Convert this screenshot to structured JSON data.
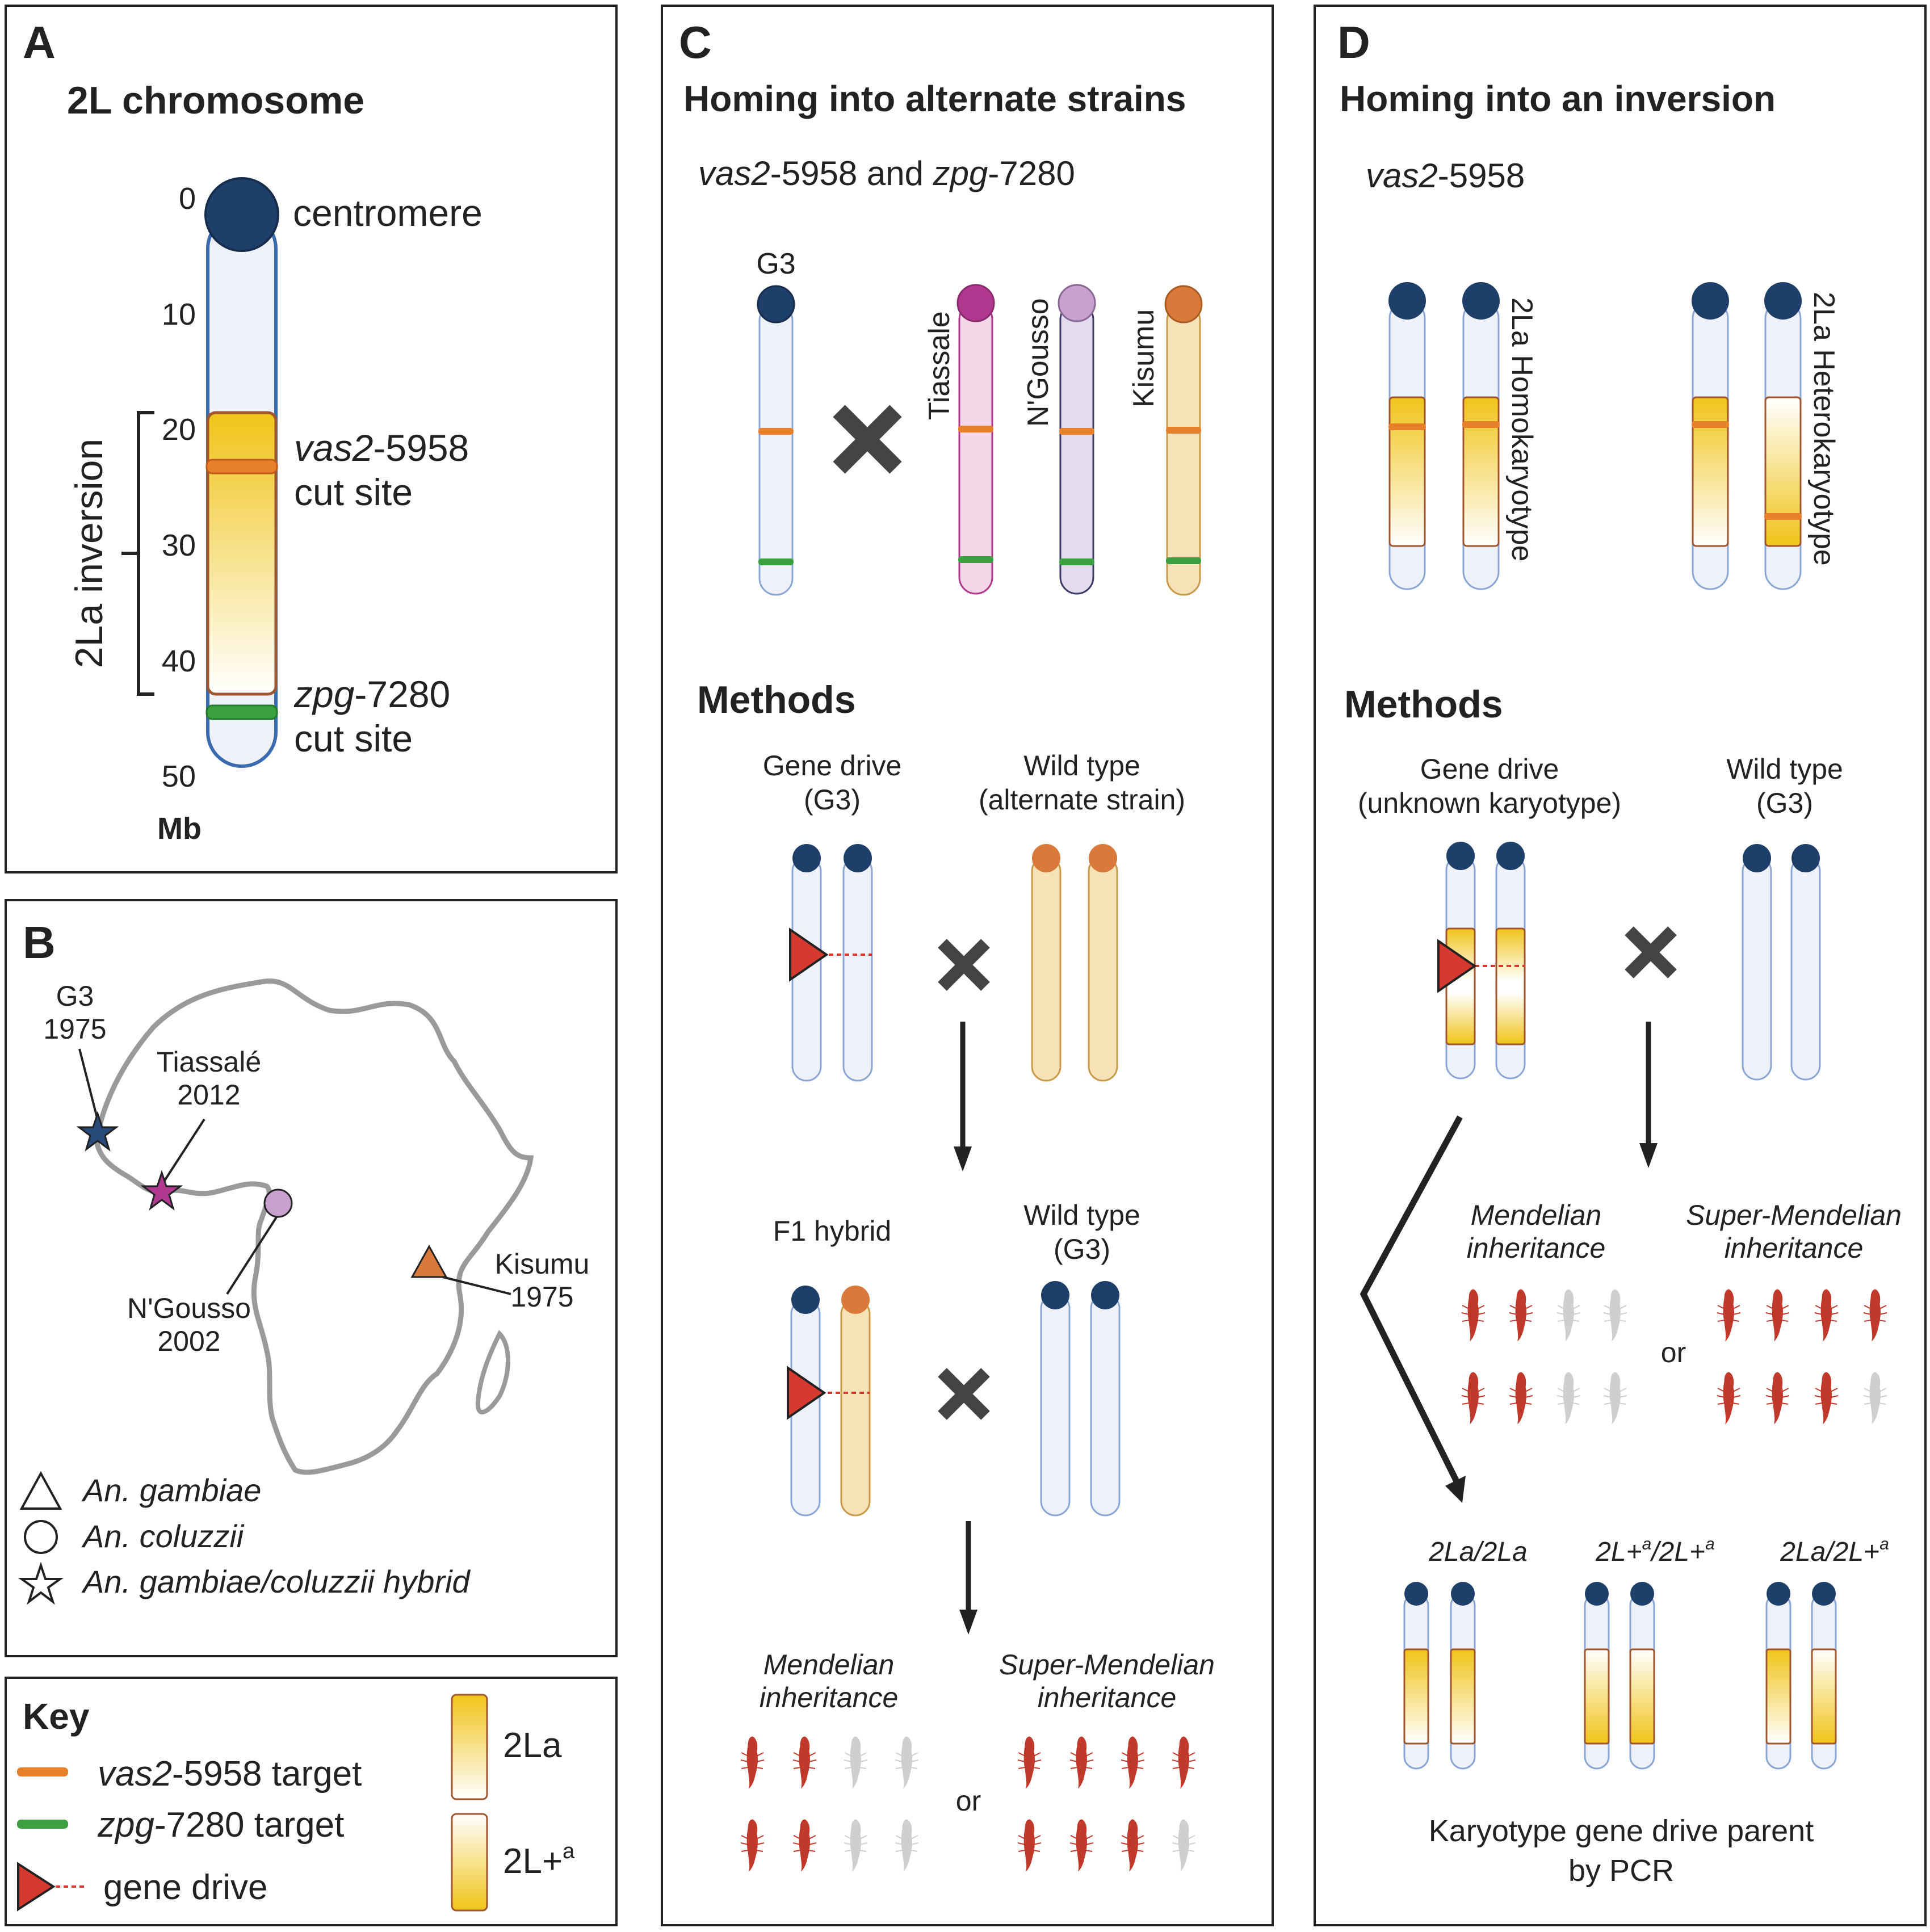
{
  "panelA": {
    "letter": "A",
    "title": "2L chromosome",
    "ticks": [
      "0",
      "10",
      "20",
      "30",
      "40",
      "50"
    ],
    "unit": "Mb",
    "inversion_label": "2La inversion",
    "centromere_label": "centromere",
    "vas_gene": "vas2",
    "vas_suffix": "-5958",
    "zpg_gene": "zpg",
    "zpg_suffix": "-7280",
    "cut_site": "cut site"
  },
  "panelB": {
    "letter": "B",
    "sites": [
      {
        "name": "G3",
        "year": "1975",
        "symbol": "star",
        "color": "#264b7a"
      },
      {
        "name": "Tiassalé",
        "year": "2012",
        "symbol": "star",
        "color": "#b0388e"
      },
      {
        "name": "N'Gousso",
        "year": "2002",
        "symbol": "circle",
        "color": "#c9a1cf"
      },
      {
        "name": "Kisumu",
        "year": "1975",
        "symbol": "triangle",
        "color": "#d97a3a"
      }
    ],
    "legend": [
      "An. gambiae",
      "An. coluzzii",
      "An. gambiae/coluzzii hybrid"
    ]
  },
  "key": {
    "title": "Key",
    "vas_gene": "vas2",
    "vas_suffix": "-5958 target",
    "zpg_gene": "zpg",
    "zpg_suffix": "-7280 target",
    "gene_drive": "gene drive",
    "inv_label": "2La",
    "std_label": "2L+",
    "std_sup": "a"
  },
  "panelC": {
    "letter": "C",
    "title": "Homing into alternate strains",
    "sub_vas": "vas2",
    "sub_mid": "-5958 and ",
    "sub_zpg": "zpg",
    "sub_end": "-7280",
    "strains": [
      "G3",
      "Tiassale",
      "N'Gousso",
      "Kisumu"
    ],
    "methods": "Methods",
    "gd_line1": "Gene drive",
    "gd_line2": "(G3)",
    "wt_line1": "Wild type",
    "wt_line2": "(alternate strain)",
    "f1": "F1 hybrid",
    "wt2_line1": "Wild type",
    "wt2_line2": "(G3)",
    "mend1": "Mendelian",
    "mend2": "inheritance",
    "super1": "Super-Mendelian",
    "super2": "inheritance",
    "or": "or"
  },
  "panelD": {
    "letter": "D",
    "title": "Homing into an inversion",
    "sub_vas": "vas2",
    "sub_end": "-5958",
    "homo": "2La Homokaryotype",
    "hetero": "2La Heterokaryotype",
    "methods": "Methods",
    "gd_line1": "Gene drive",
    "gd_line2": "(unknown karyotype)",
    "wt_line1": "Wild type",
    "wt_line2": "(G3)",
    "mend1": "Mendelian",
    "mend2": "inheritance",
    "super1": "Super-Mendelian",
    "super2": "inheritance",
    "or": "or",
    "k1": "2La/2La",
    "k2_a": "2L+",
    "k2_b": "/2L+",
    "k3_a": "2La/2L+",
    "sup": "a",
    "pcr1": "Karyotype gene drive parent",
    "pcr2": "by PCR"
  },
  "colors": {
    "centromere": "#1f3f6b",
    "vas_target": "#e8802a",
    "zpg_target": "#3aa040",
    "gene_drive": "#d63a2e",
    "inversion": "#f0c419",
    "tiassale": "#b0388e",
    "ngousso": "#c9a1cf",
    "kisumu": "#d97a3a",
    "larva_red": "#c0392b",
    "larva_grey": "#cfcfcf"
  }
}
